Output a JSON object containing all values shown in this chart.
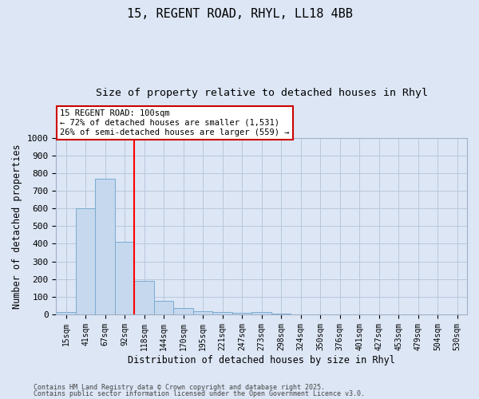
{
  "title1": "15, REGENT ROAD, RHYL, LL18 4BB",
  "title2": "Size of property relative to detached houses in Rhyl",
  "xlabel": "Distribution of detached houses by size in Rhyl",
  "ylabel": "Number of detached properties",
  "categories": [
    "15sqm",
    "41sqm",
    "67sqm",
    "92sqm",
    "118sqm",
    "144sqm",
    "170sqm",
    "195sqm",
    "221sqm",
    "247sqm",
    "273sqm",
    "298sqm",
    "324sqm",
    "350sqm",
    "376sqm",
    "401sqm",
    "427sqm",
    "453sqm",
    "479sqm",
    "504sqm",
    "530sqm"
  ],
  "values": [
    15,
    600,
    770,
    410,
    190,
    75,
    35,
    18,
    15,
    10,
    13,
    5,
    0,
    0,
    0,
    0,
    0,
    0,
    0,
    0,
    0
  ],
  "bar_color": "#c5d8ee",
  "bar_edge_color": "#7aabcf",
  "redline_x": 3.5,
  "annotation_line1": "15 REGENT ROAD: 100sqm",
  "annotation_line2": "← 72% of detached houses are smaller (1,531)",
  "annotation_line3": "26% of semi-detached houses are larger (559) →",
  "annotation_box_color": "#ffffff",
  "annotation_box_edge": "#cc0000",
  "footnote1": "Contains HM Land Registry data © Crown copyright and database right 2025.",
  "footnote2": "Contains public sector information licensed under the Open Government Licence v3.0.",
  "ylim": [
    0,
    1000
  ],
  "bg_color": "#dce6f5",
  "plot_bg_color": "#dce6f5",
  "grid_color": "#b8c8dc",
  "yticks": [
    0,
    100,
    200,
    300,
    400,
    500,
    600,
    700,
    800,
    900,
    1000
  ],
  "title_fontsize": 11,
  "subtitle_fontsize": 9.5
}
